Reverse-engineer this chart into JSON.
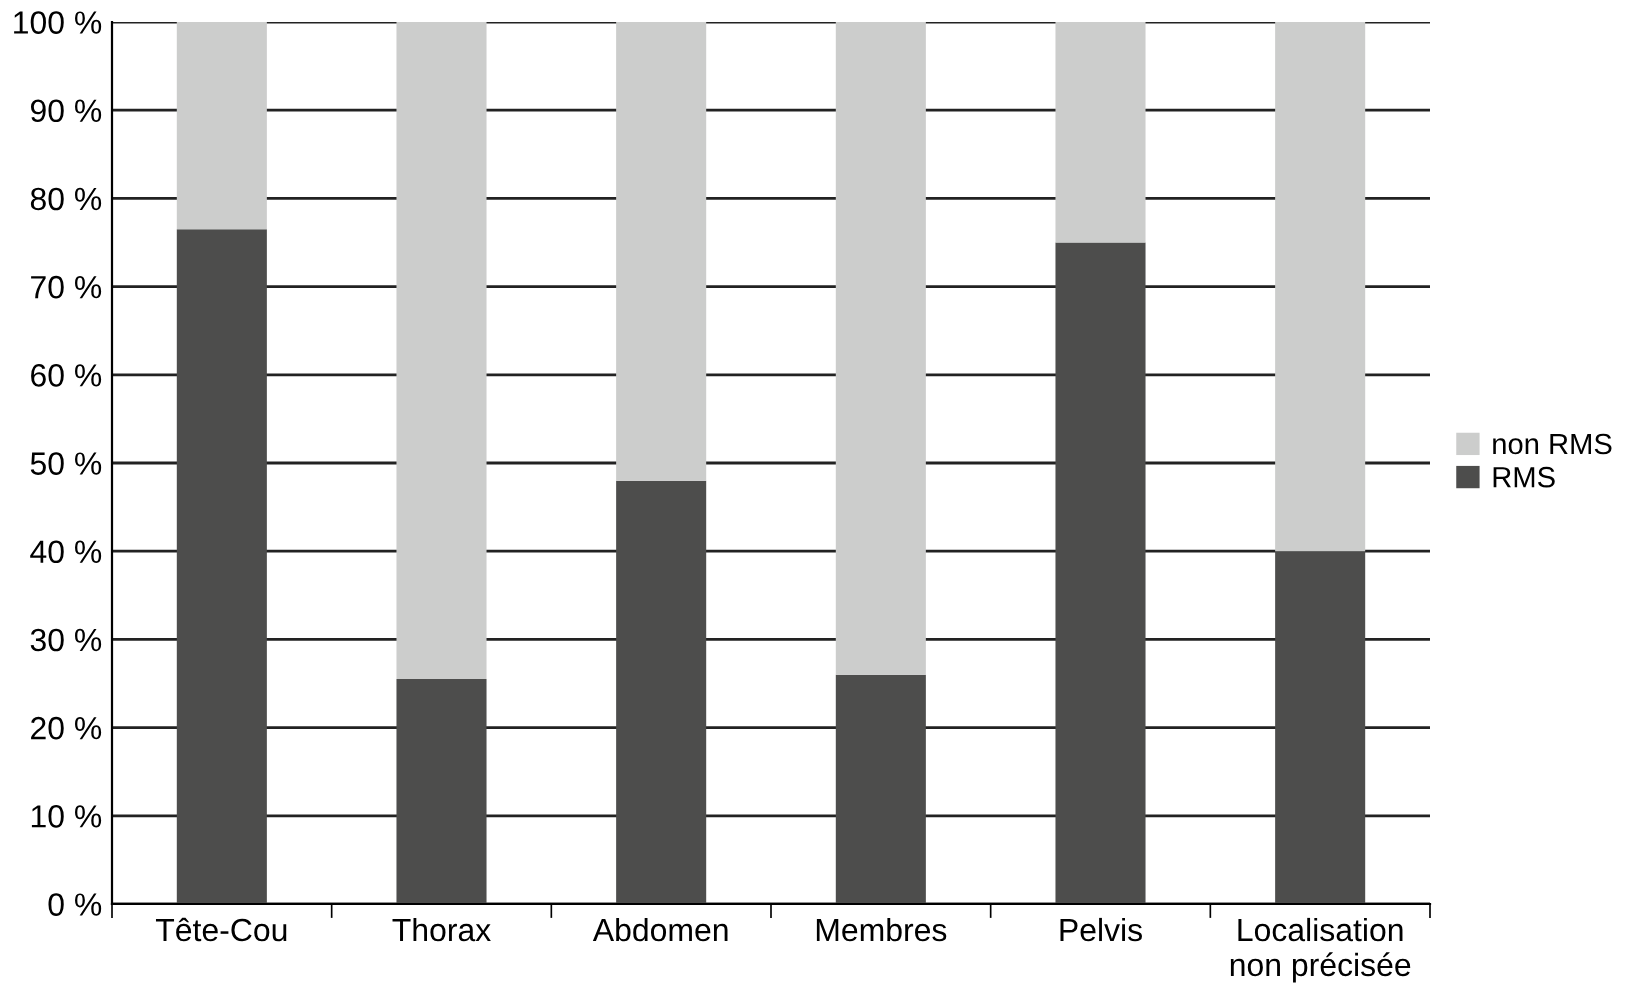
{
  "chart_data": {
    "type": "bar",
    "stacked": true,
    "categories": [
      "Tête-Cou",
      "Thorax",
      "Abdomen",
      "Membres",
      "Pelvis",
      "Localisation\nnon précisée"
    ],
    "series": [
      {
        "name": "RMS",
        "color": "#4d4d4c",
        "values": [
          76.5,
          25.5,
          48,
          26,
          75,
          40
        ]
      },
      {
        "name": "non RMS",
        "color": "#cccdcc",
        "values": [
          23.5,
          74.5,
          52,
          74,
          25,
          60
        ]
      }
    ],
    "ylim": [
      0,
      100
    ],
    "yticks": [
      {
        "value": 0,
        "label": "0 %"
      },
      {
        "value": 10,
        "label": "10 %"
      },
      {
        "value": 20,
        "label": "20 %"
      },
      {
        "value": 30,
        "label": "30 %"
      },
      {
        "value": 40,
        "label": "40 %"
      },
      {
        "value": 50,
        "label": "50 %"
      },
      {
        "value": 60,
        "label": "60 %"
      },
      {
        "value": 70,
        "label": "70 %"
      },
      {
        "value": 80,
        "label": "80 %"
      },
      {
        "value": 90,
        "label": "90 %"
      },
      {
        "value": 100,
        "label": "100 %"
      }
    ],
    "grid": "y",
    "legend": "right"
  }
}
